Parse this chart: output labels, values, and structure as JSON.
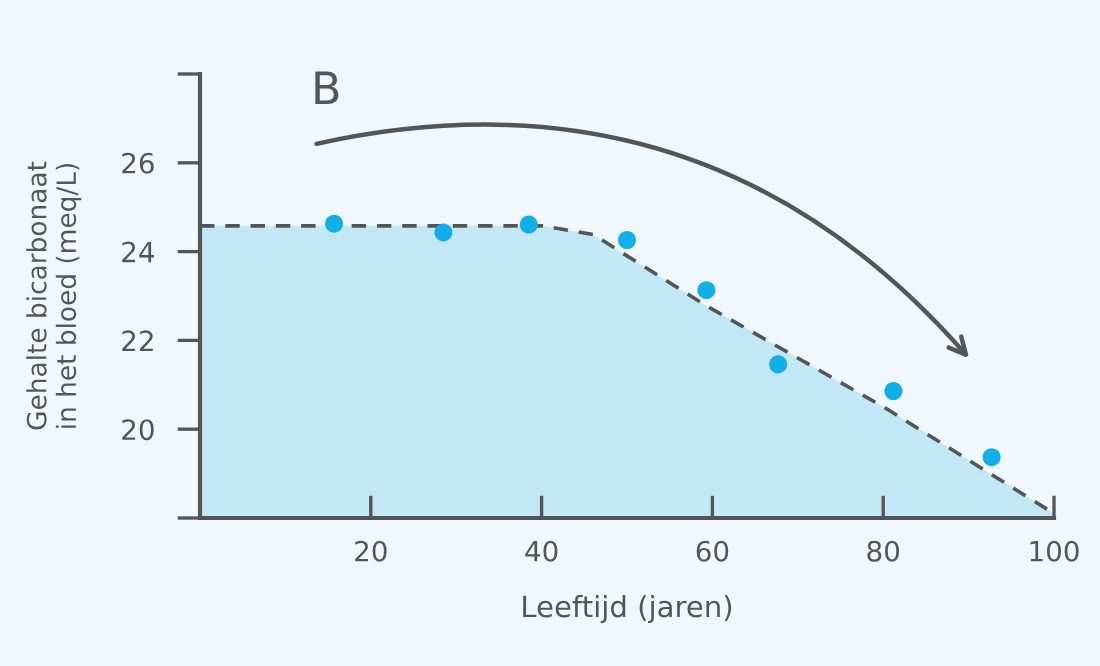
{
  "chart_data": {
    "type": "area",
    "xlabel": "Leeftijd (jaren)",
    "ylabel": "Gehalte bicarbonaat\nin het bloed (meq/L)",
    "annotations": [
      "B"
    ],
    "xlim": [
      0,
      100
    ],
    "ylim": [
      18,
      28
    ],
    "xticks": [
      {
        "value": 0,
        "label": null
      },
      20,
      40,
      60,
      80,
      100
    ],
    "yticks": [
      {
        "value": 18,
        "label": null
      },
      20,
      22,
      24,
      26,
      {
        "value": 28,
        "label": null
      }
    ],
    "grid": false,
    "legend": false,
    "series": [
      {
        "color": "#c2e8f7",
        "line_style": "dashed",
        "x": [
          0,
          40.2,
          46.1,
          49.2,
          59.3,
          80.4,
          100
        ],
        "values": [
          24.58,
          24.58,
          24.38,
          24.0,
          22.78,
          20.46,
          18.1
        ]
      },
      {
        "type": "scatter",
        "marker": "circle",
        "color": "#12aee8",
        "x": [
          15.7,
          28.5,
          38.5,
          50.0,
          59.3,
          67.7,
          81.2,
          92.7
        ],
        "values": [
          24.63,
          24.43,
          24.61,
          24.26,
          23.13,
          21.46,
          20.86,
          19.37
        ]
      }
    ]
  }
}
